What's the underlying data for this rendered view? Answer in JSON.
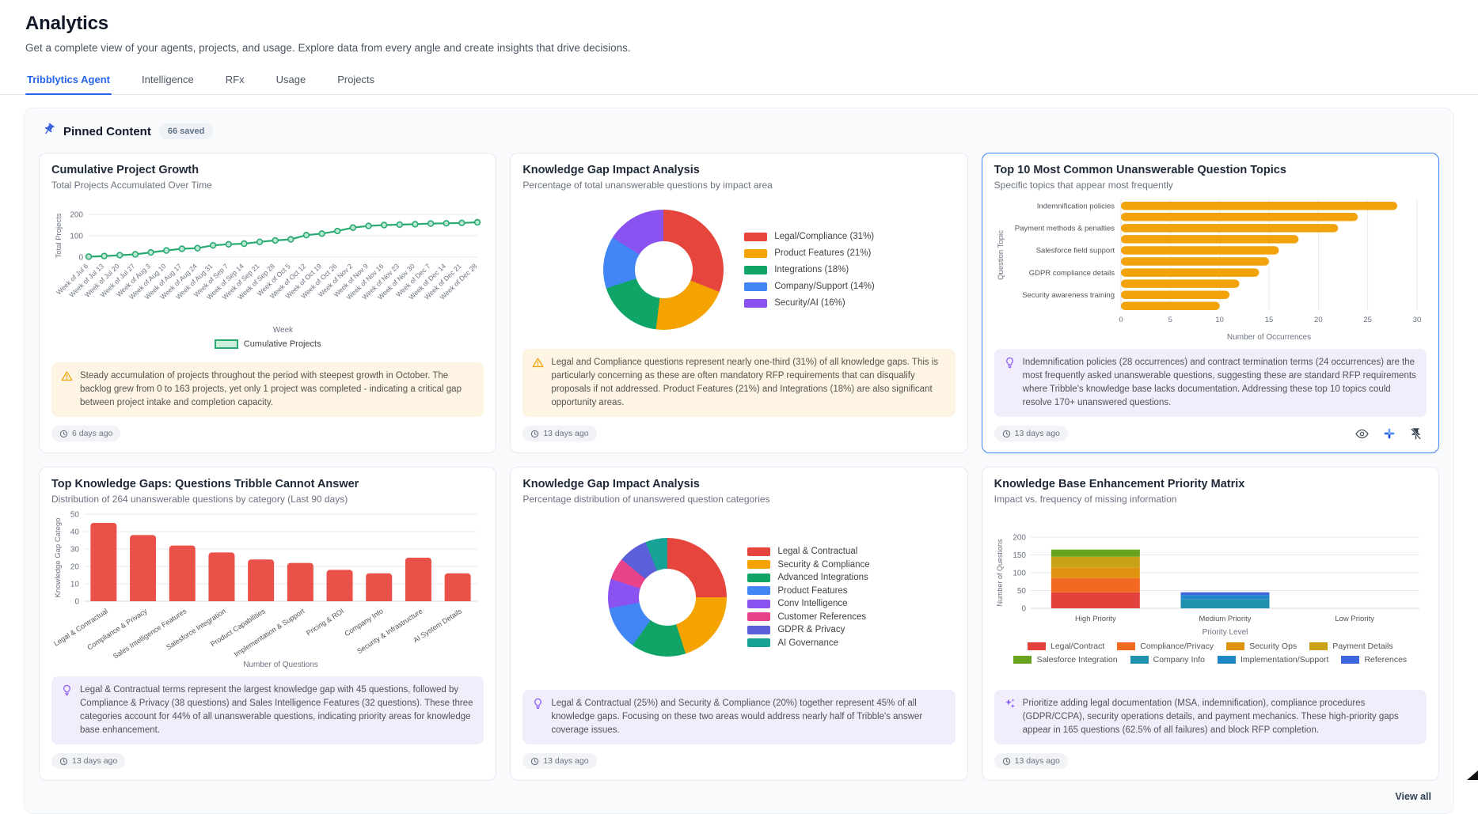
{
  "page": {
    "title": "Analytics",
    "subtitle": "Get a complete view of your agents, projects, and usage. Explore data from every angle and create insights that drive decisions."
  },
  "tabs": [
    {
      "label": "Tribblytics Agent",
      "active": true
    },
    {
      "label": "Intelligence",
      "active": false
    },
    {
      "label": "RFx",
      "active": false
    },
    {
      "label": "Usage",
      "active": false
    },
    {
      "label": "Projects",
      "active": false
    }
  ],
  "pinned": {
    "title": "Pinned Content",
    "badge": "66 saved",
    "pin_icon": "pin-icon",
    "view_all": "View all"
  },
  "cards": [
    {
      "title": "Cumulative Project Growth",
      "subtitle": "Total Projects Accumulated Over Time",
      "insight": {
        "icon": "warning-icon",
        "style": "warning",
        "text": "Steady accumulation of projects throughout the period with steepest growth in October. The backlog grew from 0 to 163 projects, yet only 1 project was completed - indicating a critical gap between project intake and completion capacity."
      },
      "timestamp": "6 days ago",
      "highlighted": false
    },
    {
      "title": "Knowledge Gap Impact Analysis",
      "subtitle": "Percentage of total unanswerable questions by impact area",
      "insight": {
        "icon": "warning-icon",
        "style": "warning",
        "text": "Legal and Compliance questions represent nearly one-third (31%) of all knowledge gaps. This is particularly concerning as these are often mandatory RFP requirements that can disqualify proposals if not addressed. Product Features (21%) and Integrations (18%) are also significant opportunity areas."
      },
      "timestamp": "13 days ago",
      "highlighted": false
    },
    {
      "title": "Top 10 Most Common Unanswerable Question Topics",
      "subtitle": "Specific topics that appear most frequently",
      "insight": {
        "icon": "lightbulb-icon",
        "style": "purple",
        "text": "Indemnification policies (28 occurrences) and contract termination terms (24 occurrences) are the most frequently asked unanswerable questions, suggesting these are standard RFP requirements where Tribble's knowledge base lacks documentation. Addressing these top 10 topics could resolve 170+ unanswered questions."
      },
      "timestamp": "13 days ago",
      "highlighted": true,
      "actions": [
        {
          "icon": "eye-icon"
        },
        {
          "icon": "share-app-icon"
        },
        {
          "icon": "unpin-icon"
        }
      ]
    },
    {
      "title": "Top Knowledge Gaps: Questions Tribble Cannot Answer",
      "subtitle": "Distribution of 264 unanswerable questions by category (Last 90 days)",
      "insight": {
        "icon": "lightbulb-icon",
        "style": "purple",
        "text": "Legal & Contractual terms represent the largest knowledge gap with 45 questions, followed by Compliance & Privacy (38 questions) and Sales Intelligence Features (32 questions). These three categories account for 44% of all unanswerable questions, indicating priority areas for knowledge base enhancement."
      },
      "timestamp": "13 days ago",
      "highlighted": false
    },
    {
      "title": "Knowledge Gap Impact Analysis",
      "subtitle": "Percentage distribution of unanswered question categories",
      "insight": {
        "icon": "lightbulb-icon",
        "style": "purple",
        "text": "Legal & Contractual (25%) and Security & Compliance (20%) together represent 45% of all knowledge gaps. Focusing on these two areas would address nearly half of Tribble's answer coverage issues."
      },
      "timestamp": "13 days ago",
      "highlighted": false
    },
    {
      "title": "Knowledge Base Enhancement Priority Matrix",
      "subtitle": "Impact vs. frequency of missing information",
      "insight": {
        "icon": "sparkles-icon",
        "style": "purple",
        "text": "Prioritize adding legal documentation (MSA, indemnification), compliance procedures (GDPR/CCPA), security operations details, and payment mechanics. These high-priority gaps appear in 165 questions (62.5% of all failures) and block RFP completion."
      },
      "timestamp": "13 days ago",
      "highlighted": false
    }
  ],
  "chart_data": [
    {
      "type": "line",
      "title": "Cumulative Project Growth",
      "x": [
        "Week of Jul 6",
        "Week of Jul 13",
        "Week of Jul 20",
        "Week of Jul 27",
        "Week of Aug 3",
        "Week of Aug 10",
        "Week of Aug 17",
        "Week of Aug 24",
        "Week of Aug 31",
        "Week of Sep 7",
        "Week of Sep 14",
        "Week of Sep 21",
        "Week of Sep 28",
        "Week of Oct 5",
        "Week of Oct 12",
        "Week of Oct 19",
        "Week of Oct 26",
        "Week of Nov 2",
        "Week of Nov 9",
        "Week of Nov 16",
        "Week of Nov 23",
        "Week of Nov 30",
        "Week of Dec 7",
        "Week of Dec 14",
        "Week of Dec 21",
        "Week of Dec 28"
      ],
      "series": [
        {
          "name": "Cumulative Projects",
          "values": [
            2,
            5,
            9,
            13,
            22,
            31,
            39,
            42,
            55,
            60,
            63,
            71,
            78,
            83,
            103,
            110,
            122,
            138,
            146,
            150,
            152,
            154,
            157,
            158,
            160,
            163
          ]
        }
      ],
      "xlabel": "Week",
      "ylabel": "Total Projects",
      "ylim": [
        0,
        200
      ],
      "yticks": [
        0,
        100,
        200
      ],
      "color": "#27ab72",
      "point_fill": "#bce8d3",
      "grid": true,
      "legend_position": "bottom"
    },
    {
      "type": "pie",
      "title": "Knowledge Gap Impact Analysis",
      "labels": [
        "Legal/Compliance (31%)",
        "Product Features (21%)",
        "Integrations (18%)",
        "Company/Support (14%)",
        "Security/AI (16%)"
      ],
      "values": [
        31,
        21,
        18,
        14,
        16
      ],
      "colors": [
        "#e5453c",
        "#f5a300",
        "#10a567",
        "#4286f5",
        "#8a52f0"
      ],
      "donut": true,
      "legend_position": "right"
    },
    {
      "type": "bar",
      "orientation": "horizontal",
      "title": "Top 10 Most Common Unanswerable Question Topics",
      "categories": [
        "Indemnification policies",
        "",
        "Payment methods & penalties",
        "",
        "Salesforce field support",
        "",
        "GDPR compliance details",
        "",
        "Security awareness training",
        ""
      ],
      "values": [
        28,
        24,
        22,
        18,
        16,
        15,
        14,
        12,
        11,
        10
      ],
      "xlabel": "Number of Occurrences",
      "ylabel": "Question Topic",
      "xlim": [
        0,
        30
      ],
      "xticks": [
        0,
        5,
        10,
        15,
        20,
        25,
        30
      ],
      "color": "#f2a30b",
      "grid": true
    },
    {
      "type": "bar",
      "orientation": "vertical",
      "title": "Top Knowledge Gaps: Questions Tribble Cannot Answer",
      "categories": [
        "Legal & Contractual",
        "Compliance & Privacy",
        "Sales Intelligence Features",
        "Salesforce Integration",
        "Product Capabilities",
        "Implementation & Support",
        "Pricing & ROI",
        "Company Info",
        "Security & Infrastructure",
        "AI System Details"
      ],
      "values": [
        45,
        38,
        32,
        28,
        24,
        22,
        18,
        16,
        25,
        16
      ],
      "xlabel": "Number of Questions",
      "ylabel": "Knowledge Gap Catego",
      "ylim": [
        0,
        50
      ],
      "yticks": [
        0,
        10,
        20,
        30,
        40,
        50
      ],
      "color": "#e95149",
      "grid": true
    },
    {
      "type": "pie",
      "title": "Knowledge Gap Impact Analysis",
      "labels": [
        "Legal & Contractual",
        "Security & Compliance",
        "Advanced Integrations",
        "Product Features",
        "Conv Intelligence",
        "Customer References",
        "GDPR & Privacy",
        "AI Governance"
      ],
      "values": [
        25,
        20,
        15,
        12,
        8,
        6,
        8,
        6
      ],
      "colors": [
        "#e5453c",
        "#f5a300",
        "#10a567",
        "#4286f5",
        "#8a52f0",
        "#e8438a",
        "#5b5fd9",
        "#18a296"
      ],
      "donut": true,
      "legend_position": "right"
    },
    {
      "type": "stacked-bar",
      "title": "Knowledge Base Enhancement Priority Matrix",
      "categories": [
        "High Priority",
        "Medium Priority",
        "Low Priority"
      ],
      "series": [
        {
          "name": "Legal/Contract",
          "color": "#e2413c",
          "values": [
            45,
            0,
            0
          ]
        },
        {
          "name": "Compliance/Privacy",
          "color": "#f26a21",
          "values": [
            40,
            0,
            0
          ]
        },
        {
          "name": "Security Ops",
          "color": "#e0930f",
          "values": [
            30,
            0,
            0
          ]
        },
        {
          "name": "Payment Details",
          "color": "#c9a21a",
          "values": [
            30,
            0,
            0
          ]
        },
        {
          "name": "Salesforce Integration",
          "color": "#68a41e",
          "values": [
            20,
            0,
            0
          ]
        },
        {
          "name": "Company Info",
          "color": "#1f93ad",
          "values": [
            0,
            25,
            0
          ]
        },
        {
          "name": "Implementation/Support",
          "color": "#1e87c8",
          "values": [
            0,
            12,
            0
          ]
        },
        {
          "name": "References",
          "color": "#3b66dd",
          "values": [
            0,
            8,
            0
          ]
        }
      ],
      "xlabel": "Priority Level",
      "ylabel": "Number of Questions",
      "ylim": [
        0,
        200
      ],
      "yticks": [
        0,
        50,
        100,
        150,
        200
      ],
      "grid": true,
      "legend_position": "bottom"
    }
  ]
}
